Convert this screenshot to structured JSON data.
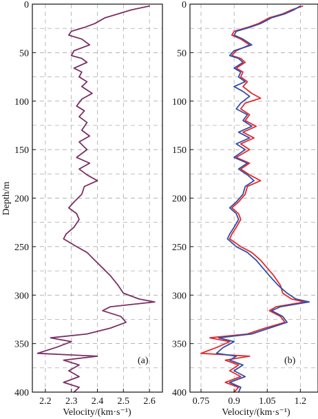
{
  "chart_data": [
    {
      "type": "line",
      "panel_label": "(a)",
      "xlabel": "Velocity/(km·s⁻¹)",
      "ylabel": "Depth/m",
      "xlim": [
        2.15,
        2.65
      ],
      "ylim": [
        0,
        400
      ],
      "y_inverted": true,
      "xticks": [
        "2.2",
        "2.3",
        "2.4",
        "2.5",
        "2.6"
      ],
      "yticks": [
        "0",
        "50",
        "100",
        "150",
        "200",
        "250",
        "300",
        "350",
        "400"
      ],
      "grid": true,
      "series": [
        {
          "color": "#7a2e63",
          "points": [
            [
              2.6,
              2
            ],
            [
              2.53,
              6
            ],
            [
              2.48,
              10
            ],
            [
              2.43,
              14
            ],
            [
              2.39,
              20
            ],
            [
              2.35,
              24
            ],
            [
              2.3,
              28
            ],
            [
              2.29,
              32
            ],
            [
              2.34,
              36
            ],
            [
              2.37,
              42
            ],
            [
              2.31,
              48
            ],
            [
              2.3,
              53
            ],
            [
              2.34,
              56
            ],
            [
              2.36,
              60
            ],
            [
              2.31,
              66
            ],
            [
              2.34,
              70
            ],
            [
              2.33,
              75
            ],
            [
              2.36,
              80
            ],
            [
              2.34,
              85
            ],
            [
              2.38,
              92
            ],
            [
              2.34,
              98
            ],
            [
              2.32,
              105
            ],
            [
              2.35,
              110
            ],
            [
              2.33,
              116
            ],
            [
              2.36,
              122
            ],
            [
              2.34,
              130
            ],
            [
              2.37,
              136
            ],
            [
              2.33,
              142
            ],
            [
              2.36,
              150
            ],
            [
              2.32,
              158
            ],
            [
              2.37,
              164
            ],
            [
              2.33,
              170
            ],
            [
              2.36,
              176
            ],
            [
              2.4,
              182
            ],
            [
              2.35,
              188
            ],
            [
              2.34,
              196
            ],
            [
              2.31,
              204
            ],
            [
              2.29,
              210
            ],
            [
              2.32,
              216
            ],
            [
              2.33,
              222
            ],
            [
              2.31,
              230
            ],
            [
              2.28,
              237
            ],
            [
              2.27,
              242
            ],
            [
              2.32,
              250
            ],
            [
              2.36,
              256
            ],
            [
              2.39,
              264
            ],
            [
              2.42,
              272
            ],
            [
              2.45,
              280
            ],
            [
              2.48,
              290
            ],
            [
              2.5,
              298
            ],
            [
              2.56,
              304
            ],
            [
              2.62,
              307
            ],
            [
              2.45,
              312
            ],
            [
              2.42,
              316
            ],
            [
              2.49,
              322
            ],
            [
              2.51,
              328
            ],
            [
              2.45,
              334
            ],
            [
              2.36,
              340
            ],
            [
              2.22,
              344
            ],
            [
              2.3,
              348
            ],
            [
              2.24,
              354
            ],
            [
              2.17,
              360
            ],
            [
              2.4,
              363
            ],
            [
              2.27,
              367
            ],
            [
              2.33,
              372
            ],
            [
              2.29,
              378
            ],
            [
              2.33,
              384
            ],
            [
              2.27,
              390
            ],
            [
              2.33,
              395
            ],
            [
              2.31,
              400
            ]
          ]
        }
      ]
    },
    {
      "type": "line",
      "panel_label": "(b)",
      "xlabel": "Velocity/(km·s⁻¹)",
      "xlim": [
        0.7,
        1.28
      ],
      "ylim": [
        0,
        400
      ],
      "y_inverted": true,
      "xticks": [
        "0.75",
        "0.9",
        "1.05",
        "1.2"
      ],
      "yticks": [
        "0",
        "50",
        "100",
        "150",
        "200",
        "250",
        "300",
        "350",
        "400"
      ],
      "grid": true,
      "series": [
        {
          "color": "#e8262a",
          "points": [
            [
              1.21,
              2
            ],
            [
              1.16,
              6
            ],
            [
              1.12,
              10
            ],
            [
              1.06,
              14
            ],
            [
              1.01,
              20
            ],
            [
              0.96,
              24
            ],
            [
              0.9,
              28
            ],
            [
              0.89,
              32
            ],
            [
              0.93,
              36
            ],
            [
              0.97,
              42
            ],
            [
              0.91,
              48
            ],
            [
              0.89,
              53
            ],
            [
              0.93,
              56
            ],
            [
              0.95,
              60
            ],
            [
              0.91,
              66
            ],
            [
              0.94,
              70
            ],
            [
              0.93,
              75
            ],
            [
              0.96,
              80
            ],
            [
              0.94,
              85
            ],
            [
              0.98,
              92
            ],
            [
              1.02,
              97
            ],
            [
              0.95,
              102
            ],
            [
              0.93,
              108
            ],
            [
              0.97,
              114
            ],
            [
              0.95,
              120
            ],
            [
              1.0,
              126
            ],
            [
              0.94,
              132
            ],
            [
              0.99,
              138
            ],
            [
              0.93,
              144
            ],
            [
              0.97,
              150
            ],
            [
              0.91,
              158
            ],
            [
              0.97,
              164
            ],
            [
              0.93,
              170
            ],
            [
              0.97,
              176
            ],
            [
              1.02,
              182
            ],
            [
              0.96,
              188
            ],
            [
              0.95,
              196
            ],
            [
              0.92,
              204
            ],
            [
              0.89,
              210
            ],
            [
              0.92,
              216
            ],
            [
              0.93,
              222
            ],
            [
              0.91,
              230
            ],
            [
              0.89,
              237
            ],
            [
              0.88,
              242
            ],
            [
              0.93,
              250
            ],
            [
              0.98,
              256
            ],
            [
              1.02,
              264
            ],
            [
              1.05,
              272
            ],
            [
              1.08,
              280
            ],
            [
              1.11,
              290
            ],
            [
              1.12,
              298
            ],
            [
              1.16,
              304
            ],
            [
              1.22,
              307
            ],
            [
              1.09,
              312
            ],
            [
              1.06,
              316
            ],
            [
              1.11,
              322
            ],
            [
              1.13,
              328
            ],
            [
              1.04,
              334
            ],
            [
              0.96,
              340
            ],
            [
              0.79,
              344
            ],
            [
              0.88,
              348
            ],
            [
              0.82,
              354
            ],
            [
              0.75,
              360
            ],
            [
              0.97,
              363
            ],
            [
              0.86,
              367
            ],
            [
              0.92,
              372
            ],
            [
              0.88,
              378
            ],
            [
              0.93,
              384
            ],
            [
              0.86,
              390
            ],
            [
              0.92,
              395
            ],
            [
              0.9,
              400
            ]
          ]
        },
        {
          "color": "#2e4ea8",
          "points": [
            [
              1.2,
              2
            ],
            [
              1.17,
              6
            ],
            [
              1.13,
              10
            ],
            [
              1.07,
              14
            ],
            [
              1.02,
              20
            ],
            [
              0.97,
              24
            ],
            [
              0.91,
              28
            ],
            [
              0.9,
              32
            ],
            [
              0.94,
              36
            ],
            [
              0.98,
              42
            ],
            [
              0.9,
              48
            ],
            [
              0.88,
              53
            ],
            [
              0.92,
              56
            ],
            [
              0.94,
              60
            ],
            [
              0.9,
              66
            ],
            [
              0.93,
              70
            ],
            [
              0.92,
              75
            ],
            [
              0.95,
              80
            ],
            [
              0.9,
              85
            ],
            [
              0.94,
              90
            ],
            [
              0.97,
              95
            ],
            [
              0.93,
              102
            ],
            [
              0.91,
              108
            ],
            [
              0.96,
              114
            ],
            [
              0.94,
              120
            ],
            [
              0.98,
              126
            ],
            [
              0.92,
              132
            ],
            [
              0.97,
              138
            ],
            [
              0.91,
              144
            ],
            [
              0.95,
              150
            ],
            [
              0.9,
              158
            ],
            [
              0.96,
              164
            ],
            [
              0.92,
              170
            ],
            [
              0.96,
              176
            ],
            [
              0.99,
              182
            ],
            [
              0.95,
              188
            ],
            [
              0.94,
              196
            ],
            [
              0.91,
              204
            ],
            [
              0.88,
              210
            ],
            [
              0.91,
              216
            ],
            [
              0.92,
              222
            ],
            [
              0.9,
              230
            ],
            [
              0.88,
              237
            ],
            [
              0.87,
              242
            ],
            [
              0.91,
              250
            ],
            [
              0.96,
              256
            ],
            [
              1.0,
              264
            ],
            [
              1.03,
              272
            ],
            [
              1.06,
              280
            ],
            [
              1.1,
              290
            ],
            [
              1.14,
              298
            ],
            [
              1.18,
              304
            ],
            [
              1.24,
              307
            ],
            [
              1.11,
              312
            ],
            [
              1.07,
              316
            ],
            [
              1.12,
              322
            ],
            [
              1.14,
              328
            ],
            [
              1.06,
              334
            ],
            [
              0.98,
              340
            ],
            [
              0.83,
              344
            ],
            [
              0.9,
              348
            ],
            [
              0.85,
              354
            ],
            [
              0.82,
              360
            ],
            [
              0.91,
              363
            ],
            [
              0.88,
              367
            ],
            [
              0.94,
              372
            ],
            [
              0.9,
              378
            ],
            [
              0.95,
              384
            ],
            [
              0.88,
              390
            ],
            [
              0.93,
              395
            ],
            [
              0.92,
              400
            ]
          ]
        }
      ]
    }
  ]
}
